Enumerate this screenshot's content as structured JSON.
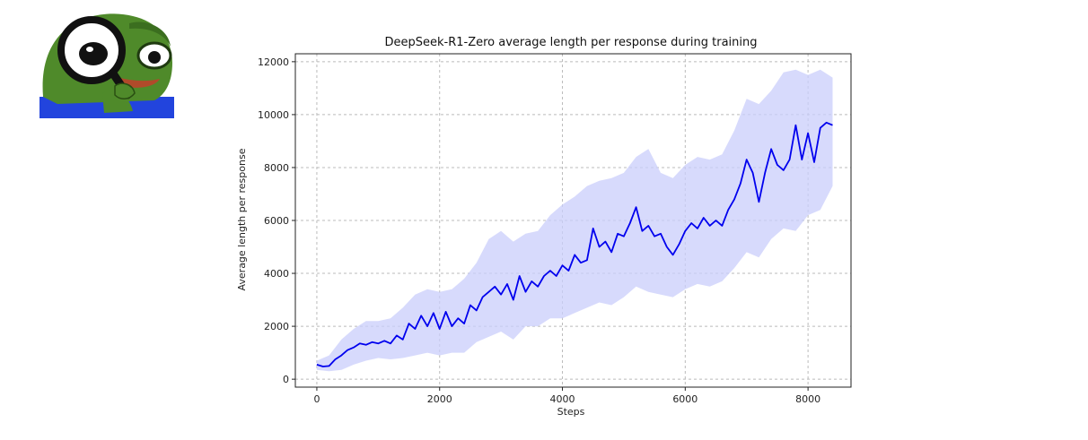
{
  "meme": {
    "icon": "magnifying-glass-frog-icon"
  },
  "chart_data": {
    "type": "line",
    "title": "DeepSeek-R1-Zero average length per response during training",
    "xlabel": "Steps",
    "ylabel": "Average length per response",
    "xlim": [
      -350,
      8700
    ],
    "ylim": [
      -300,
      12300
    ],
    "xticks": [
      0,
      2000,
      4000,
      6000,
      8000
    ],
    "xtick_labels": [
      "0",
      "2000",
      "4000",
      "6000",
      "8000"
    ],
    "yticks": [
      0,
      2000,
      4000,
      6000,
      8000,
      10000,
      12000
    ],
    "ytick_labels": [
      "0",
      "2000",
      "4000",
      "6000",
      "8000",
      "10000",
      "12000"
    ],
    "grid": true,
    "colors": {
      "line": "#0000ee",
      "band": "#c9cdfb"
    },
    "series": [
      {
        "style": "smoothed mean",
        "x": [
          0,
          100,
          200,
          300,
          400,
          500,
          600,
          700,
          800,
          900,
          1000,
          1100,
          1200,
          1300,
          1400,
          1500,
          1600,
          1700,
          1800,
          1900,
          2000,
          2100,
          2200,
          2300,
          2400,
          2500,
          2600,
          2700,
          2800,
          2900,
          3000,
          3100,
          3200,
          3300,
          3400,
          3500,
          3600,
          3700,
          3800,
          3900,
          4000,
          4100,
          4200,
          4300,
          4400,
          4500,
          4600,
          4700,
          4800,
          4900,
          5000,
          5100,
          5200,
          5300,
          5400,
          5500,
          5600,
          5700,
          5800,
          5900,
          6000,
          6100,
          6200,
          6300,
          6400,
          6500,
          6600,
          6700,
          6800,
          6900,
          7000,
          7100,
          7200,
          7300,
          7400,
          7500,
          7600,
          7700,
          7800,
          7900,
          8000,
          8100,
          8200,
          8300,
          8400
        ],
        "y": [
          550,
          480,
          500,
          750,
          900,
          1100,
          1200,
          1350,
          1300,
          1400,
          1350,
          1450,
          1350,
          1650,
          1500,
          2100,
          1900,
          2400,
          2000,
          2500,
          1900,
          2550,
          2000,
          2300,
          2100,
          2800,
          2600,
          3100,
          3300,
          3500,
          3200,
          3600,
          3000,
          3900,
          3300,
          3700,
          3500,
          3900,
          4100,
          3900,
          4300,
          4100,
          4700,
          4400,
          4500,
          5700,
          5000,
          5200,
          4800,
          5500,
          5400,
          5900,
          6500,
          5600,
          5800,
          5400,
          5500,
          5000,
          4700,
          5100,
          5600,
          5900,
          5700,
          6100,
          5800,
          6000,
          5800,
          6400,
          6800,
          7400,
          8300,
          7800,
          6700,
          7800,
          8700,
          8100,
          7900,
          8300,
          9600,
          8300,
          9300,
          8200,
          9500,
          9700,
          9600
        ]
      }
    ],
    "band": {
      "x": [
        0,
        200,
        400,
        600,
        800,
        1000,
        1200,
        1400,
        1600,
        1800,
        2000,
        2200,
        2400,
        2600,
        2800,
        3000,
        3200,
        3400,
        3600,
        3800,
        4000,
        4200,
        4400,
        4600,
        4800,
        5000,
        5200,
        5400,
        5600,
        5800,
        6000,
        6200,
        6400,
        6600,
        6800,
        7000,
        7200,
        7400,
        7600,
        7800,
        8000,
        8200,
        8400
      ],
      "upper": [
        700,
        900,
        1500,
        1900,
        2200,
        2200,
        2300,
        2700,
        3200,
        3400,
        3300,
        3400,
        3800,
        4400,
        5300,
        5600,
        5200,
        5500,
        5600,
        6200,
        6600,
        6900,
        7300,
        7500,
        7600,
        7800,
        8400,
        8700,
        7800,
        7600,
        8100,
        8400,
        8300,
        8500,
        9400,
        10600,
        10400,
        10900,
        11600,
        11700,
        11500,
        11700,
        11400
      ],
      "lower": [
        350,
        300,
        350,
        550,
        700,
        800,
        750,
        800,
        900,
        1000,
        900,
        1000,
        1000,
        1400,
        1600,
        1800,
        1500,
        2000,
        2000,
        2300,
        2300,
        2500,
        2700,
        2900,
        2800,
        3100,
        3500,
        3300,
        3200,
        3100,
        3400,
        3600,
        3500,
        3700,
        4200,
        4800,
        4600,
        5300,
        5700,
        5600,
        6200,
        6400,
        7300
      ]
    }
  }
}
